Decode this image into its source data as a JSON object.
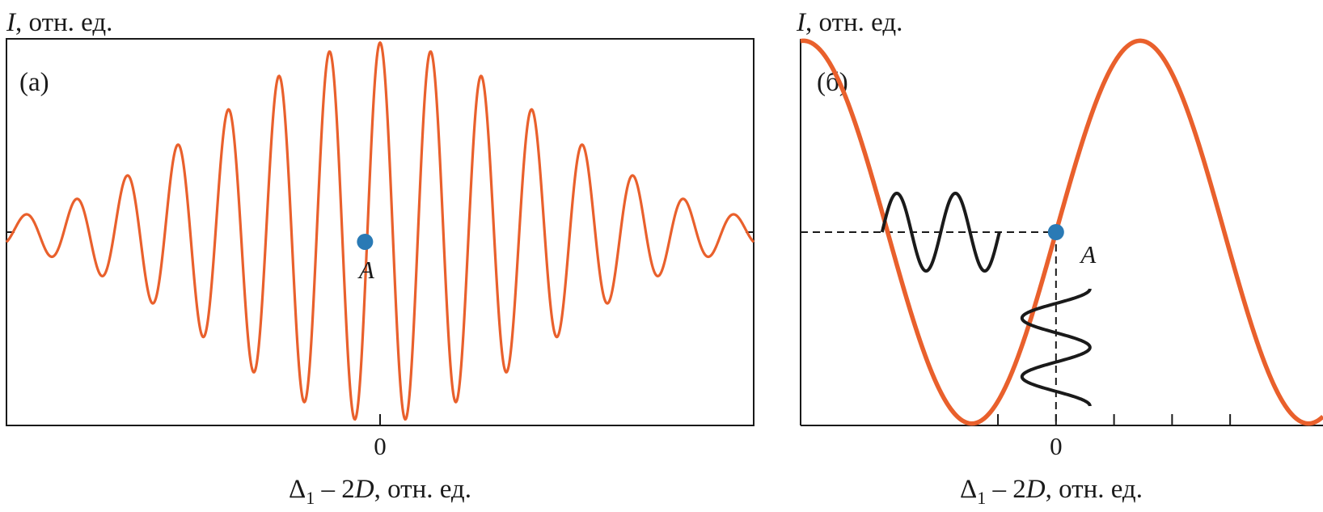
{
  "colors": {
    "curve": "#e9602c",
    "point": "#2a7ab5",
    "signal": "#1a1a1a",
    "axis": "#1a1a1a"
  },
  "chart_data": [
    {
      "type": "line",
      "panel_label": "(а)",
      "ylabel_symbol": "I",
      "ylabel_rest": ", отн. ед.",
      "xlabel_delta": "Δ",
      "xlabel_sub": "1",
      "xlabel_mid": " – 2",
      "xlabel_D": "D",
      "xlabel_rest": ", отн. ед.",
      "xlim": [
        -6.2,
        6.2
      ],
      "ylim": [
        -1.0,
        1.0
      ],
      "x_ticks": [
        0
      ],
      "x_tick_labels": [
        "0"
      ],
      "baseline": 0.0,
      "curve": {
        "form": "damped cosine",
        "period": 0.84,
        "envelope_sigma": 2.7,
        "amplitude": 0.98,
        "peak_x": 0
      },
      "points": [
        {
          "name": "A",
          "x": -0.25,
          "y": -0.05
        }
      ]
    },
    {
      "type": "line",
      "panel_label": "(б)",
      "ylabel_symbol": "I",
      "ylabel_rest": ", отн. ед.",
      "xlabel_delta": "Δ",
      "xlabel_sub": "1",
      "xlabel_mid": " – 2",
      "xlabel_D": "D",
      "xlabel_rest": ", отн. ед.",
      "xlim": [
        -2.2,
        2.3
      ],
      "ylim": [
        -1.0,
        1.0
      ],
      "x_ticks": [
        -0.5,
        0,
        0.5,
        1.0,
        1.5
      ],
      "x_tick_labels": [
        "",
        "0",
        "",
        "",
        ""
      ],
      "curve": {
        "form": "sine",
        "period": 2.9,
        "amplitude": 0.99,
        "zero_x": 0
      },
      "points": [
        {
          "name": "A",
          "x": 0,
          "y": 0
        }
      ],
      "input_signal": {
        "cycles": 2,
        "axis": "y"
      },
      "output_signal": {
        "cycles": 2,
        "axis": "x"
      }
    }
  ]
}
